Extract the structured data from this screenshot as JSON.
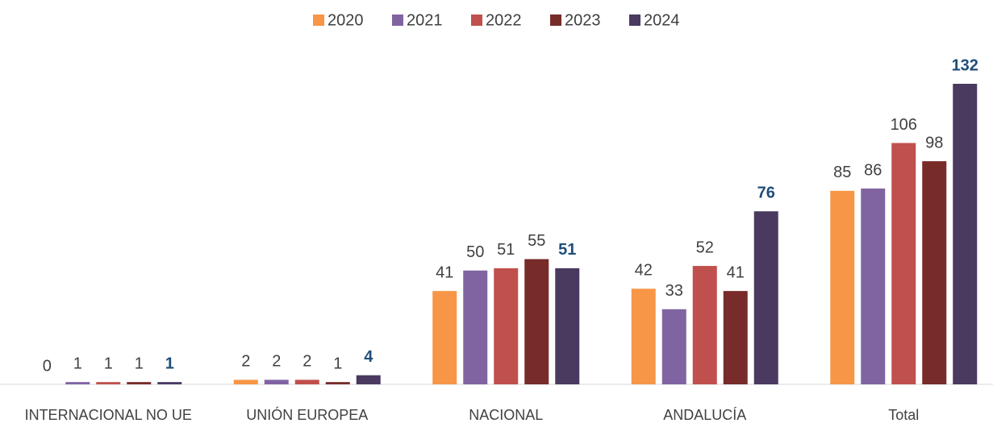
{
  "chart_data": {
    "type": "bar",
    "categories": [
      "INTERNACIONAL NO UE",
      "UNIÓN EUROPEA",
      "NACIONAL",
      "ANDALUCÍA",
      "Total"
    ],
    "series": [
      {
        "name": "2020",
        "color": "#f79646",
        "values": [
          0,
          2,
          41,
          42,
          85
        ]
      },
      {
        "name": "2021",
        "color": "#8064a2",
        "values": [
          1,
          2,
          50,
          33,
          86
        ]
      },
      {
        "name": "2022",
        "color": "#c0504d",
        "values": [
          1,
          2,
          51,
          52,
          106
        ]
      },
      {
        "name": "2023",
        "color": "#772c2a",
        "values": [
          1,
          1,
          55,
          41,
          98
        ]
      },
      {
        "name": "2024",
        "color": "#4a3a60",
        "values": [
          1,
          4,
          51,
          76,
          132
        ],
        "label_color": "#1f4e79",
        "label_bold": true
      }
    ],
    "legend": "top",
    "grid": false
  }
}
